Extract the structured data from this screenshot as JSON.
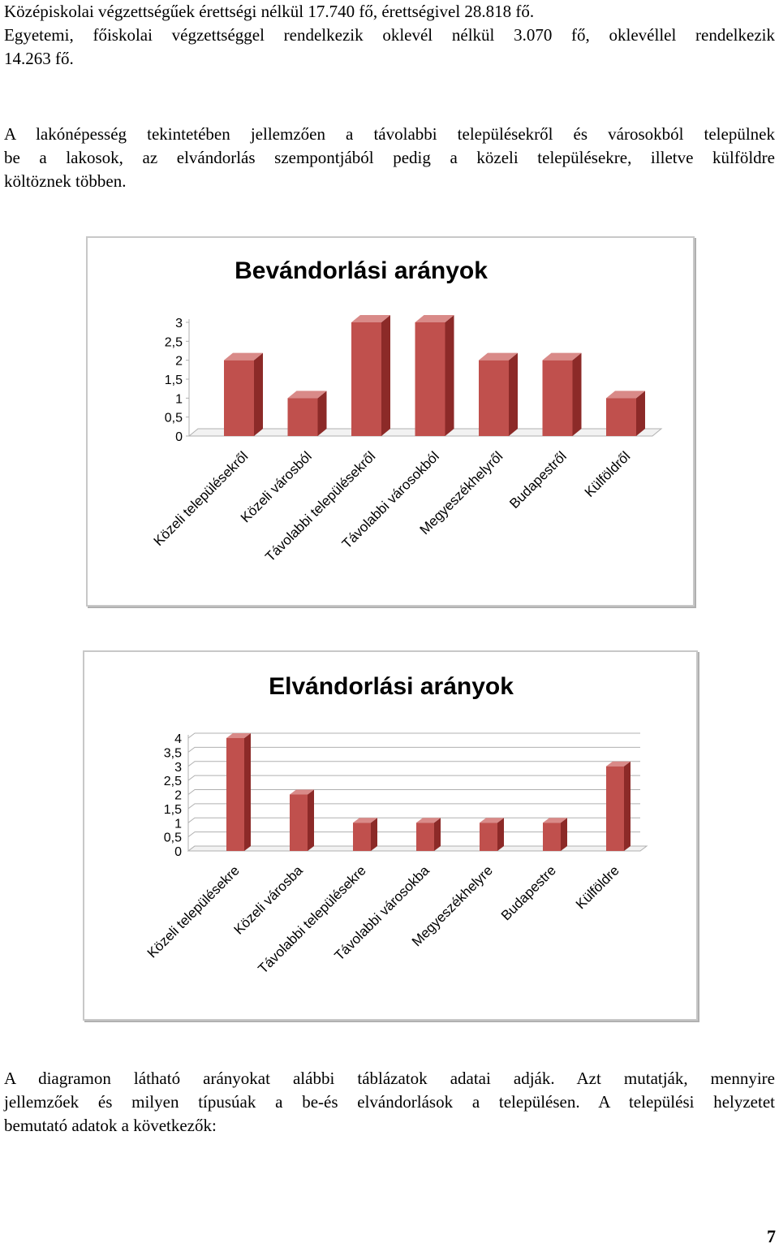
{
  "paragraphs": {
    "p1_lines": [
      "Középiskolai végzettségűek érettségi nélkül 17.740 fő, érettségivel 28.818 fő.",
      "Egyetemi, főiskolai végzettséggel rendelkezik oklevél nélkül 3.070 fő, oklevéllel rendelkezik",
      "14.263 fő."
    ],
    "p2_lines": [
      "A lakónépesség tekintetében jellemzően a távolabbi településekről és városokból települnek",
      "be a lakosok, az elvándorlás szempontjából pedig a közeli településekre, illetve külföldre",
      "költöznek többen."
    ],
    "p3_lines": [
      "A diagramon látható arányokat alábbi táblázatok adatai adják. Azt mutatják, mennyire",
      "jellemzőek és milyen típusúak a be-és elvándorlások a településen. A települési helyzetet",
      "bemutató adatok a következők:"
    ]
  },
  "page_number": "7",
  "colors": {
    "bar_front": "#c0504d",
    "bar_side": "#8c2a28",
    "bar_top": "#d98a88",
    "grid": "#b0b0b0"
  },
  "chart_data": [
    {
      "type": "bar",
      "title": "Bevándorlási arányok",
      "categories": [
        "Közeli településekről",
        "Közeli városból",
        "Távolabbi településekről",
        "Távolabbi városokból",
        "Megyeszékhelyről",
        "Budapestről",
        "Külföldről"
      ],
      "values": [
        2,
        1,
        3,
        3,
        2,
        2,
        1
      ],
      "ylim": [
        0,
        3
      ],
      "yticks": [
        "0",
        "0,5",
        "1",
        "1,5",
        "2",
        "2,5",
        "3"
      ],
      "grid": false,
      "legend": "none",
      "style": "3d-column"
    },
    {
      "type": "bar",
      "title": "Elvándorlási arányok",
      "categories": [
        "Közeli településekre",
        "Közeli városba",
        "Távolabbi településekre",
        "Távolabbi városokba",
        "Megyeszékhelyre",
        "Budapestre",
        "Külföldre"
      ],
      "values": [
        4,
        2,
        1,
        1,
        1,
        1,
        3
      ],
      "ylim": [
        0,
        4
      ],
      "yticks": [
        "0",
        "0,5",
        "1",
        "1,5",
        "2",
        "2,5",
        "3",
        "3,5",
        "4"
      ],
      "grid": true,
      "legend": "none",
      "style": "3d-column"
    }
  ]
}
